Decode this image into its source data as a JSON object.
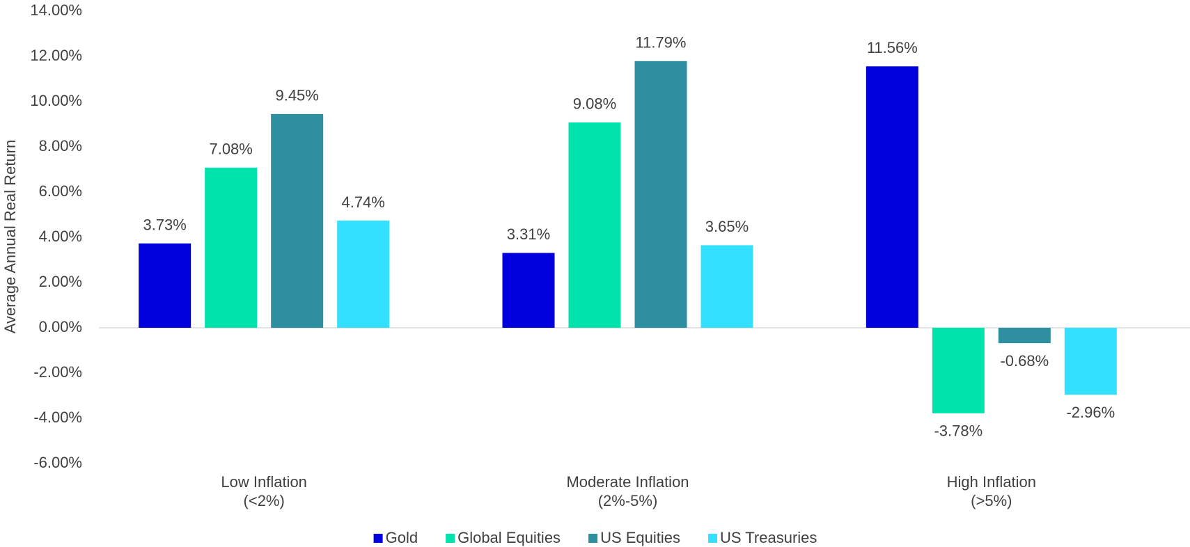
{
  "chart_data": {
    "type": "bar",
    "y_label": "Average Annual Real Return",
    "categories": [
      [
        "Low Inflation",
        "(<2%)"
      ],
      [
        "Moderate Inflation",
        "(2%-5%)"
      ],
      [
        "High Inflation",
        "(>5%)"
      ]
    ],
    "series": [
      {
        "name": "Gold",
        "color": "#0000dd",
        "values": [
          3.73,
          3.31,
          11.56
        ],
        "value_labels": [
          "3.73%",
          "3.31%",
          "11.56%"
        ]
      },
      {
        "name": "Global Equities",
        "color": "#00e3ad",
        "values": [
          7.08,
          9.08,
          -3.78
        ],
        "value_labels": [
          "7.08%",
          "9.08%",
          "-3.78%"
        ]
      },
      {
        "name": "US Equities",
        "color": "#2e8fa0",
        "values": [
          9.45,
          11.79,
          -0.68
        ],
        "value_labels": [
          "9.45%",
          "11.79%",
          "-0.68%"
        ]
      },
      {
        "name": "US Treasuries",
        "color": "#33e0ff",
        "values": [
          4.74,
          3.65,
          -2.96
        ],
        "value_labels": [
          "4.74%",
          "3.65%",
          "-2.96%"
        ]
      }
    ],
    "ylim": [
      -6,
      14
    ],
    "yticks": [
      {
        "value": -6,
        "label": "-6.00%"
      },
      {
        "value": -4,
        "label": "-4.00%"
      },
      {
        "value": -2,
        "label": "-2.00%"
      },
      {
        "value": 0,
        "label": "0.00%"
      },
      {
        "value": 2,
        "label": "2.00%"
      },
      {
        "value": 4,
        "label": "4.00%"
      },
      {
        "value": 6,
        "label": "6.00%"
      },
      {
        "value": 8,
        "label": "8.00%"
      },
      {
        "value": 10,
        "label": "10.00%"
      },
      {
        "value": 12,
        "label": "12.00%"
      },
      {
        "value": 14,
        "label": "14.00%"
      }
    ],
    "grid": false,
    "legend": "bottom"
  }
}
